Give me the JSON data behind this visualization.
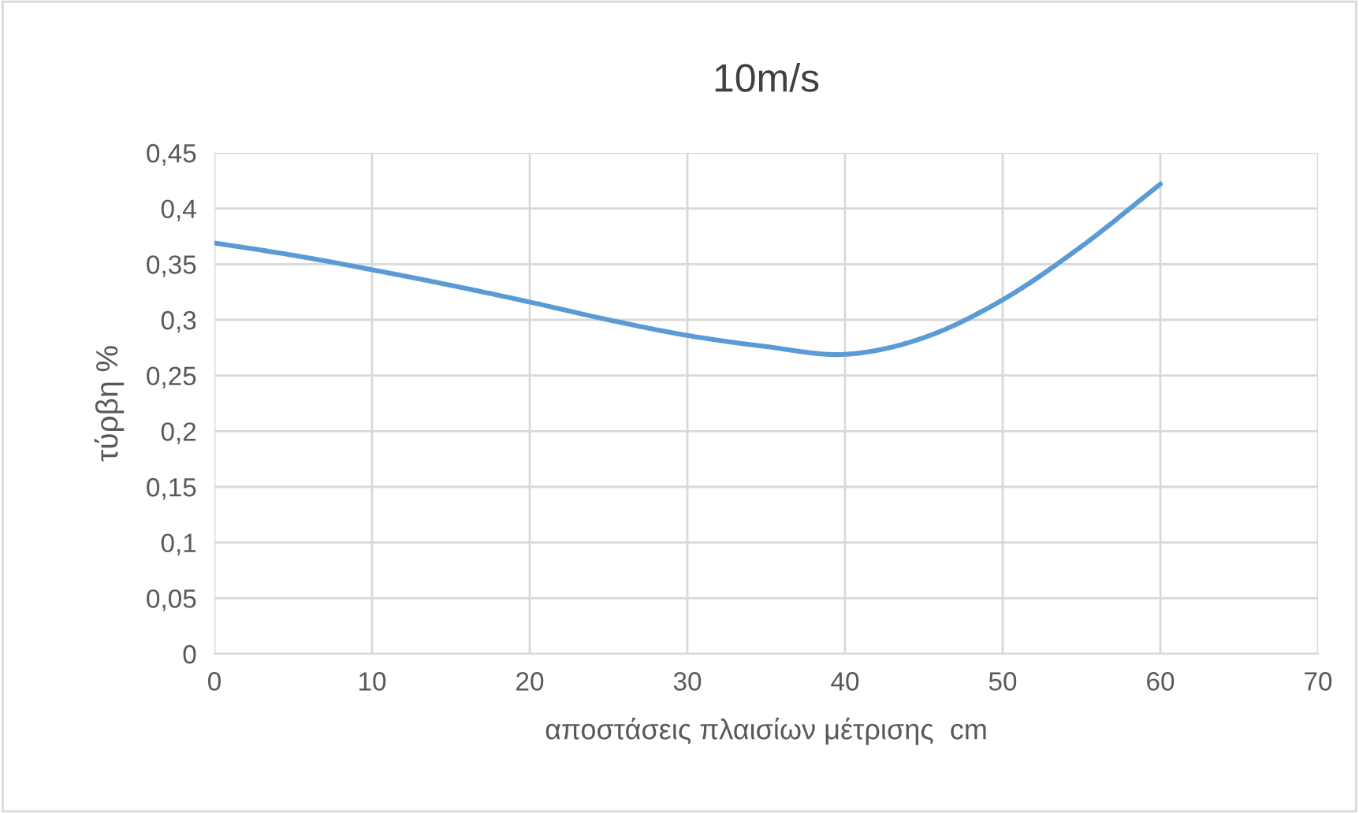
{
  "chart_data": {
    "type": "line",
    "title": "10m/s",
    "xlabel": "αποστάσεις πλαισίων μέτρισης  cm",
    "ylabel": "τύρβη %",
    "x": [
      0,
      5,
      10,
      15,
      20,
      25,
      30,
      35,
      40,
      45,
      50,
      55,
      60
    ],
    "series": [
      {
        "color": "#5b9bd5",
        "values": [
          0.369,
          0.358,
          0.345,
          0.331,
          0.316,
          0.3,
          0.286,
          0.276,
          0.269,
          0.284,
          0.318,
          0.366,
          0.422
        ]
      }
    ],
    "xlim": [
      0,
      70
    ],
    "xticks": [
      0,
      10,
      20,
      30,
      40,
      50,
      60,
      70
    ],
    "ylim": [
      0,
      0.45
    ],
    "yticks": [
      {
        "value": 0,
        "label": "0"
      },
      {
        "value": 0.05,
        "label": "0,05"
      },
      {
        "value": 0.1,
        "label": "0,1"
      },
      {
        "value": 0.15,
        "label": "0,15"
      },
      {
        "value": 0.2,
        "label": "0,2"
      },
      {
        "value": 0.25,
        "label": "0,25"
      },
      {
        "value": 0.3,
        "label": "0,3"
      },
      {
        "value": 0.35,
        "label": "0,35"
      },
      {
        "value": 0.4,
        "label": "0,4"
      },
      {
        "value": 0.45,
        "label": "0,45"
      }
    ],
    "grid": true,
    "marker": "none",
    "line_style": "solid"
  }
}
